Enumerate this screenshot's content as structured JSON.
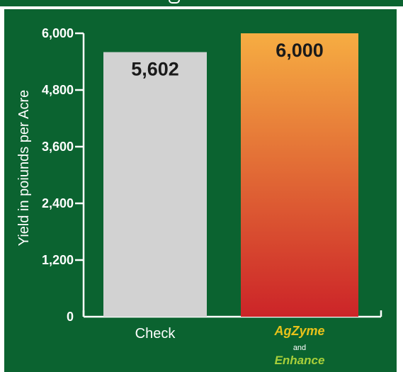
{
  "chart_data": {
    "type": "bar",
    "categories": [
      "Check",
      "AgZyme and Enhance"
    ],
    "values": [
      5602,
      6000
    ],
    "data_labels": [
      "5,602",
      "6,000"
    ],
    "xlabel": "",
    "ylabel": "Yield in poiunds per Acre",
    "ylim": [
      0,
      6000
    ],
    "yticks": [
      0,
      1200,
      2400,
      3600,
      4800,
      6000
    ],
    "ytick_labels": [
      "0",
      "1,200",
      "2,400",
      "3,600",
      "4,800",
      "6,000"
    ],
    "grid": false,
    "legend": "none",
    "category_labels": {
      "check": "Check",
      "brand_line1": "AgZyme",
      "brand_and": "and",
      "brand_line2": "Enhance"
    },
    "colors": {
      "background": "#0b6330",
      "check_bar": "#d2d2d2",
      "treated_bar_top": "#f6ad42",
      "treated_bar_bottom": "#cc2428",
      "axis": "#ffffff",
      "logo_gold": "#e8c21a",
      "logo_green": "#a8cf3a"
    }
  }
}
